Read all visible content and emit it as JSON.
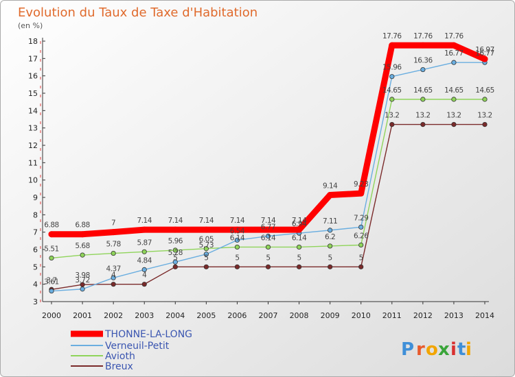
{
  "chart_data": {
    "type": "line",
    "title": "Evolution du Taux de Taxe d'Habitation",
    "subtitle": "(en %)",
    "x": [
      "2000",
      "2001",
      "2002",
      "2003",
      "2004",
      "2005",
      "2006",
      "2007",
      "2008",
      "2009",
      "2010",
      "2011",
      "2012",
      "2013",
      "2014"
    ],
    "ylim": [
      3,
      18
    ],
    "yticks": [
      3,
      4,
      5,
      6,
      7,
      8,
      9,
      10,
      11,
      12,
      13,
      14,
      15,
      16,
      17,
      18
    ],
    "grid": false,
    "legend": "bottom-left",
    "series": [
      {
        "name": "THONNE-LA-LONG",
        "color": "#ff0000",
        "values": [
          6.88,
          6.88,
          7,
          7.14,
          7.14,
          7.14,
          7.14,
          7.14,
          7.14,
          9.14,
          9.23,
          17.76,
          17.76,
          17.76,
          16.97
        ],
        "labels": [
          "6.88",
          "6.88",
          "7",
          "7.14",
          "7.14",
          "7.14",
          "7.14",
          "7.14",
          "7.14",
          "9.14",
          "9.23",
          "17.76",
          "17.76",
          "17.76",
          "16.97"
        ]
      },
      {
        "name": "Verneuil-Petit",
        "color": "#6aaee0",
        "values": [
          3.61,
          3.72,
          4.37,
          4.84,
          5.28,
          5.73,
          6.54,
          6.77,
          6.94,
          7.11,
          7.29,
          15.96,
          16.36,
          16.77,
          16.77
        ],
        "labels": [
          "3.61",
          "3.72",
          "4.37",
          "4.84",
          "5.28",
          "5.73",
          "6.54",
          "6.77",
          "6.94",
          "7.11",
          "7.29",
          "15.96",
          "16.36",
          "16.77",
          "16.77"
        ]
      },
      {
        "name": "Avioth",
        "color": "#8fd45a",
        "values": [
          5.51,
          5.68,
          5.78,
          5.87,
          5.96,
          6.05,
          6.14,
          6.14,
          6.14,
          6.2,
          6.26,
          14.65,
          14.65,
          14.65,
          14.65
        ],
        "labels": [
          "5.51",
          "5.68",
          "5.78",
          "5.87",
          "5.96",
          "6.05",
          "6.14",
          "6.14",
          "6.14",
          "6.2",
          "6.26",
          "14.65",
          "14.65",
          "14.65",
          "14.65"
        ]
      },
      {
        "name": "Breux",
        "color": "#7a2a2a",
        "values": [
          3.7,
          3.98,
          4,
          4,
          5,
          5,
          5,
          5,
          5,
          5,
          5,
          13.2,
          13.2,
          13.2,
          13.2
        ],
        "labels": [
          "3.7",
          "3.98",
          "4",
          "4",
          "5",
          "5",
          "5",
          "5",
          "5",
          "5",
          "5",
          "13.2",
          "13.2",
          "13.2",
          "13.2"
        ]
      }
    ]
  },
  "logo": {
    "letters": [
      "P",
      "r",
      "o",
      "x",
      "i",
      "t",
      "i"
    ],
    "colors": [
      "#3f8fd8",
      "#e85a2c",
      "#f2a500",
      "#3aa53a",
      "#d83030",
      "#3f8fd8",
      "#f2a500"
    ]
  }
}
